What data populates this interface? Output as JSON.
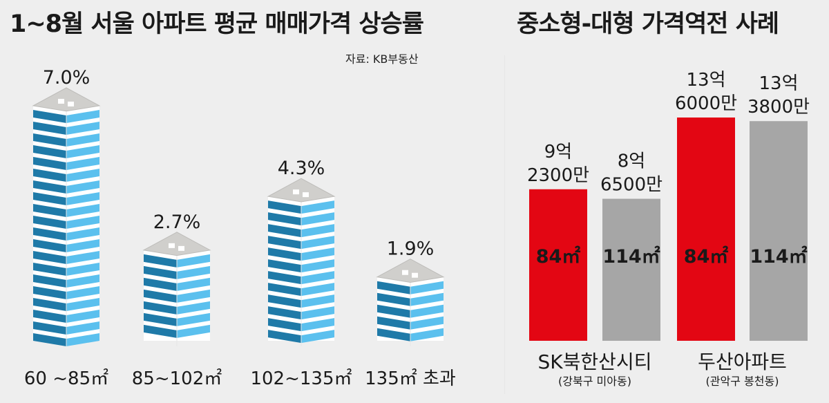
{
  "left_chart": {
    "title": "1~8월 서울 아파트 평균 매매가격 상승률",
    "source": "자료: KB부동산"
  },
  "right_chart": {
    "title": "중소형-대형 가격역전 사례"
  },
  "colors": {
    "red": "#e30613",
    "gray": "#a6a6a6",
    "building_blue_light": "#5bc0ee",
    "building_blue_dark": "#1f7aa8",
    "building_roof": "#d0cfcc"
  },
  "chart_data": [
    {
      "type": "bar",
      "title": "1~8월 서울 아파트 평균 매매가격 상승률",
      "categories": [
        "60 ~85㎡",
        "85~102㎡",
        "102~135㎡",
        "135㎡ 초과"
      ],
      "values": [
        7.0,
        2.7,
        4.3,
        1.9
      ],
      "value_labels": [
        "7.0%",
        "2.7%",
        "4.3%",
        "1.9%"
      ],
      "unit": "%",
      "ylim": [
        0,
        7.0
      ],
      "grid": false
    },
    {
      "type": "bar",
      "title": "중소형-대형 가격역전 사례",
      "groups": [
        {
          "name": "SK북한산시티",
          "location": "(강북구 미아동)",
          "bars": [
            {
              "size": "84㎡",
              "price_line1": "9억",
              "price_line2": "2300만",
              "value": 92300
            },
            {
              "size": "114㎡",
              "price_line1": "8억",
              "price_line2": "6500만",
              "value": 86500
            }
          ]
        },
        {
          "name": "두산아파트",
          "location": "(관악구 봉천동)",
          "bars": [
            {
              "size": "84㎡",
              "price_line1": "13억",
              "price_line2": "6000만",
              "value": 136000
            },
            {
              "size": "114㎡",
              "price_line1": "13억",
              "price_line2": "3800만",
              "value": 133800
            }
          ]
        }
      ],
      "unit": "만원",
      "grid": false
    }
  ]
}
